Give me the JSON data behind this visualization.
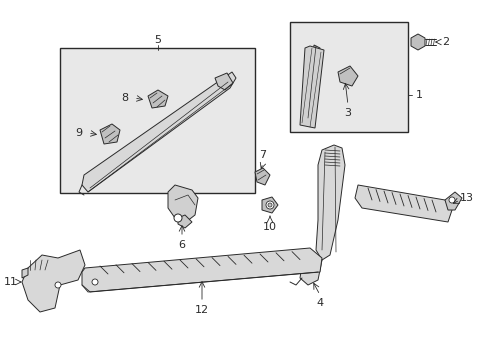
{
  "bg_color": "#ffffff",
  "lc": "#2a2a2a",
  "box_bg": "#e8e8e8",
  "part_bg": "#f0f0f0",
  "figsize": [
    4.89,
    3.6
  ],
  "dpi": 100
}
